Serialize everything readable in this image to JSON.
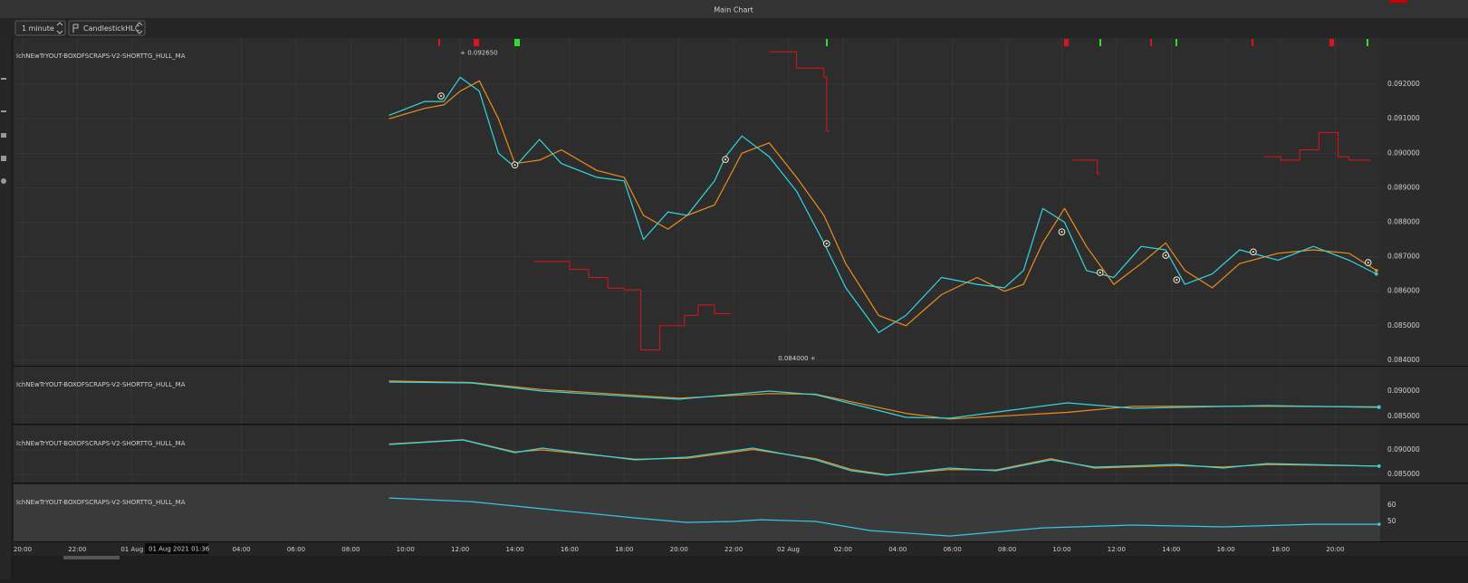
{
  "window": {
    "title": "Main Chart"
  },
  "toolbar": {
    "timeframe": "1 minute",
    "chart_style": "CandlestickHLC"
  },
  "x_axis": {
    "xlim": [
      -0.33,
      49.64
    ],
    "ticks": [
      {
        "value": 0,
        "label": "20:00"
      },
      {
        "value": 2,
        "label": "22:00"
      },
      {
        "value": 4,
        "label": "01 Aug"
      },
      {
        "value": 8,
        "label": "04:00"
      },
      {
        "value": 10,
        "label": "06:00"
      },
      {
        "value": 12,
        "label": "08:00"
      },
      {
        "value": 14,
        "label": "10:00"
      },
      {
        "value": 16,
        "label": "12:00"
      },
      {
        "value": 18,
        "label": "14:00"
      },
      {
        "value": 20,
        "label": "16:00"
      },
      {
        "value": 22,
        "label": "18:00"
      },
      {
        "value": 24,
        "label": "20:00"
      },
      {
        "value": 26,
        "label": "22:00"
      },
      {
        "value": 28,
        "label": "02 Aug"
      },
      {
        "value": 30,
        "label": "02:00"
      },
      {
        "value": 32,
        "label": "04:00"
      },
      {
        "value": 34,
        "label": "06:00"
      },
      {
        "value": 36,
        "label": "08:00"
      },
      {
        "value": 38,
        "label": "10:00"
      },
      {
        "value": 40,
        "label": "12:00"
      },
      {
        "value": 42,
        "label": "14:00"
      },
      {
        "value": 44,
        "label": "16:00"
      },
      {
        "value": 46,
        "label": "18:00"
      },
      {
        "value": 48,
        "label": "20:00"
      }
    ],
    "crosshair_label": "01 Aug 2021 01:36"
  },
  "panes": [
    {
      "label": "IchNEwTrYOUT-BOXOFSCRAPS-V2-SHORTTG_HULL_MA",
      "ylim": [
        0.08384,
        0.09334
      ],
      "yticks": [
        {
          "value": 0.084,
          "label": "0.084000"
        },
        {
          "value": 0.085,
          "label": "0.085000"
        },
        {
          "value": 0.086,
          "label": "0.086000"
        },
        {
          "value": 0.087,
          "label": "0.087000"
        },
        {
          "value": 0.088,
          "label": "0.088000"
        },
        {
          "value": 0.089,
          "label": "0.089000"
        },
        {
          "value": 0.09,
          "label": "0.090000"
        },
        {
          "value": 0.091,
          "label": "0.091000"
        },
        {
          "value": 0.092,
          "label": "0.092000"
        }
      ],
      "series": [
        {
          "color": "#f08c1a",
          "x": [
            13.4,
            14.7,
            15.4,
            16.0,
            16.7,
            17.4,
            18.0,
            18.9,
            19.7,
            21.0,
            22.0,
            22.7,
            23.6,
            24.3,
            25.3,
            25.7,
            26.3,
            27.3,
            28.3,
            29.3,
            30.1,
            31.3,
            32.3,
            33.6,
            34.9,
            35.9,
            36.6,
            37.3,
            38.1,
            38.9,
            39.9,
            40.9,
            41.8,
            42.5,
            43.5,
            44.5,
            45.9,
            47.2,
            48.5,
            49.5
          ],
          "values": [
            0.091,
            0.0913,
            0.0914,
            0.0918,
            0.0921,
            0.091,
            0.0897,
            0.0898,
            0.0901,
            0.0895,
            0.0893,
            0.0882,
            0.0878,
            0.0882,
            0.0885,
            0.0891,
            0.09,
            0.0903,
            0.0893,
            0.0882,
            0.0868,
            0.0853,
            0.085,
            0.0859,
            0.0864,
            0.086,
            0.0862,
            0.0874,
            0.0884,
            0.0873,
            0.0862,
            0.0868,
            0.0874,
            0.0866,
            0.0861,
            0.0868,
            0.0871,
            0.0872,
            0.0871,
            0.0866
          ]
        },
        {
          "color": "#33d6e0",
          "x": [
            13.4,
            14.7,
            15.4,
            16.0,
            16.7,
            17.4,
            18.0,
            18.9,
            19.7,
            21.0,
            22.0,
            22.7,
            23.6,
            24.3,
            25.3,
            25.7,
            26.3,
            27.3,
            28.3,
            29.3,
            30.1,
            31.3,
            32.3,
            33.6,
            34.9,
            35.9,
            36.6,
            37.3,
            38.1,
            38.9,
            39.9,
            40.9,
            41.8,
            42.5,
            43.5,
            44.5,
            45.9,
            47.2,
            48.5,
            49.5
          ],
          "values": [
            0.0911,
            0.0915,
            0.0915,
            0.0922,
            0.0918,
            0.09,
            0.0896,
            0.0904,
            0.0897,
            0.0893,
            0.0892,
            0.0875,
            0.0883,
            0.0882,
            0.0892,
            0.0899,
            0.0905,
            0.0899,
            0.0889,
            0.0874,
            0.0861,
            0.0848,
            0.0853,
            0.0864,
            0.0862,
            0.0861,
            0.0866,
            0.0884,
            0.088,
            0.0866,
            0.0864,
            0.0873,
            0.0872,
            0.0862,
            0.0865,
            0.0872,
            0.0869,
            0.0873,
            0.0869,
            0.0865
          ]
        }
      ],
      "steps": {
        "color": "#e0131a",
        "x": [
          27.3,
          28.3,
          29.3,
          29.4,
          null,
          18.7,
          20.0,
          20.7,
          21.4,
          22.0,
          22.6,
          23.3,
          24.2,
          24.7,
          25.3,
          25.8,
          null,
          38.4,
          39.3,
          null,
          45.4,
          46.0,
          46.7,
          47.4,
          48.1,
          48.5,
          49.2
        ],
        "values": [
          0.09294,
          0.09247,
          0.09221,
          0.09064,
          null,
          0.08686,
          0.08663,
          0.0864,
          0.08609,
          0.08604,
          0.0843,
          0.085,
          0.0853,
          0.0856,
          0.08535,
          0.08535,
          null,
          0.0898,
          0.0894,
          null,
          0.0899,
          0.0898,
          0.0901,
          0.0906,
          0.0899,
          0.0898,
          0.0898
        ]
      },
      "markers": {
        "x": [
          15.3,
          18.0,
          25.7,
          29.4,
          38.0,
          39.4,
          41.8,
          42.2,
          45.0,
          49.2
        ],
        "values": [
          0.09166,
          0.08966,
          0.08982,
          0.08738,
          0.08772,
          0.08654,
          0.08704,
          0.08633,
          0.08714,
          0.08683
        ]
      },
      "annotations": [
        {
          "text": "+ 0.092650",
          "x": 16.0,
          "value": 0.09265
        },
        {
          "text": "0.084000 +",
          "x": 29.0,
          "value": 0.084
        }
      ]
    },
    {
      "label": "IchNEwTrYOUT-BOXOFSCRAPS-V2-SHORTTG_HULL_MA",
      "ylim": [
        0.08357,
        0.09482
      ],
      "yticks": [
        {
          "value": 0.085,
          "label": "0.085000"
        },
        {
          "value": 0.09,
          "label": "0.090000"
        }
      ],
      "series": [
        {
          "color": "#f08c1a",
          "x": [
            13.4,
            16.4,
            19.0,
            24.0,
            27.3,
            29.0,
            32.3,
            33.9,
            38.2,
            40.6,
            45.5,
            49.6
          ],
          "values": [
            0.092,
            0.0917,
            0.0903,
            0.0886,
            0.0895,
            0.0894,
            0.0856,
            0.0845,
            0.0858,
            0.087,
            0.087,
            0.0869
          ]
        },
        {
          "color": "#33d6e0",
          "x": [
            13.4,
            16.4,
            19.0,
            24.0,
            27.3,
            29.0,
            32.3,
            33.9,
            38.2,
            40.6,
            45.5,
            49.6
          ],
          "values": [
            0.09179,
            0.09161,
            0.09,
            0.08839,
            0.09,
            0.08929,
            0.08482,
            0.08464,
            0.08768,
            0.08661,
            0.08714,
            0.08679
          ]
        }
      ]
    },
    {
      "label": "IchNEwTrYOUT-BOXOFSCRAPS-V2-SHORTTG_HULL_MA",
      "ylim": [
        0.08333,
        0.095
      ],
      "yticks": [
        {
          "value": 0.085,
          "label": "0.085000"
        },
        {
          "value": 0.09,
          "label": "0.090000"
        }
      ],
      "series": [
        {
          "color": "#f08c1a",
          "x": [
            13.4,
            16.1,
            18.0,
            19.0,
            22.4,
            24.3,
            26.7,
            29.0,
            30.3,
            31.6,
            33.9,
            35.6,
            37.6,
            39.2,
            42.2,
            43.9,
            45.5,
            49.6
          ],
          "values": [
            0.0912,
            0.0921,
            0.0896,
            0.09,
            0.0881,
            0.0883,
            0.0901,
            0.0882,
            0.086,
            0.0849,
            0.086,
            0.0859,
            0.0882,
            0.0863,
            0.0868,
            0.0865,
            0.087,
            0.0867
          ]
        },
        {
          "color": "#33d6e0",
          "x": [
            13.4,
            16.1,
            18.0,
            19.0,
            22.4,
            24.3,
            26.7,
            29.0,
            30.3,
            31.6,
            33.9,
            35.6,
            37.6,
            39.2,
            42.2,
            43.9,
            45.5,
            49.6
          ],
          "values": [
            0.09111,
            0.09204,
            0.08944,
            0.09037,
            0.08796,
            0.08852,
            0.09037,
            0.08796,
            0.08574,
            0.08481,
            0.0863,
            0.08574,
            0.08796,
            0.08648,
            0.08704,
            0.0863,
            0.08722,
            0.08667
          ]
        }
      ]
    },
    {
      "label": "IchNEwTrYOUT-BOXOFSCRAPS-V2-SHORTTG_HULL_MA",
      "ylim": [
        37.8,
        72.8
      ],
      "yticks": [
        50,
        60
      ],
      "series": [
        {
          "color": "#33c6e6",
          "x": [
            13.4,
            16.4,
            19.0,
            22.4,
            24.3,
            26.0,
            27.0,
            29.0,
            31.0,
            33.9,
            37.3,
            40.6,
            43.9,
            47.2,
            49.6
          ],
          "values": [
            64.4,
            62.2,
            57.8,
            52.2,
            49.4,
            50.0,
            51.1,
            50.0,
            44.4,
            41.1,
            46.1,
            47.8,
            46.7,
            48.3,
            48.3
          ]
        }
      ]
    }
  ]
}
